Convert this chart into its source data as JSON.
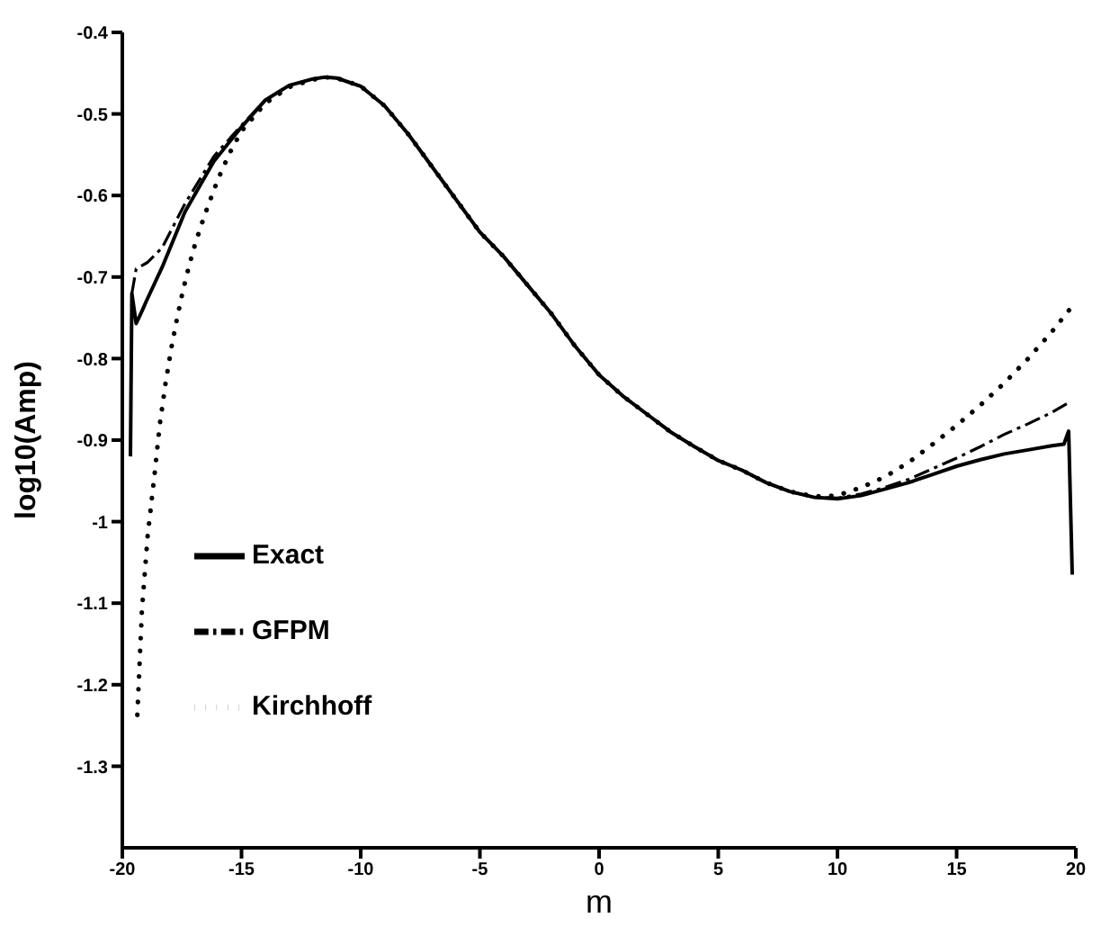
{
  "chart_data": {
    "type": "line",
    "xlabel": "m",
    "ylabel": "log10(Amp)",
    "xlim": [
      -20,
      20
    ],
    "ylim": [
      -1.4,
      -0.4
    ],
    "xticks": [
      -20,
      -15,
      -10,
      -5,
      0,
      5,
      10,
      15,
      20
    ],
    "yticks": [
      -1.3,
      -1.2,
      -1.1,
      -1,
      -0.9,
      -0.8,
      -0.7,
      -0.6,
      -0.5,
      -0.4
    ],
    "legend": "left",
    "series": [
      {
        "name": "Exact",
        "color": "#000000",
        "line_style": "solid",
        "x": [
          -19.66,
          -19.6,
          -19.42,
          -19.18,
          -19.0,
          -18.33,
          -17.37,
          -16.16,
          -15,
          -14,
          -13,
          -12,
          -11.5,
          -11,
          -10,
          -9,
          -8,
          -7,
          -6,
          -5,
          -4,
          -3,
          -2,
          -1,
          0,
          1,
          2,
          3,
          4,
          5,
          6,
          7,
          8,
          9,
          10,
          11,
          12,
          13,
          14,
          15,
          16,
          17,
          18,
          19,
          19.5,
          19.7,
          19.85
        ],
        "values": [
          -0.92,
          -0.72,
          -0.757,
          -0.742,
          -0.73,
          -0.688,
          -0.62,
          -0.558,
          -0.516,
          -0.483,
          -0.465,
          -0.457,
          -0.455,
          -0.456,
          -0.466,
          -0.49,
          -0.525,
          -0.565,
          -0.605,
          -0.645,
          -0.675,
          -0.71,
          -0.745,
          -0.785,
          -0.82,
          -0.846,
          -0.868,
          -0.89,
          -0.908,
          -0.925,
          -0.937,
          -0.952,
          -0.963,
          -0.97,
          -0.972,
          -0.968,
          -0.96,
          -0.952,
          -0.942,
          -0.932,
          -0.924,
          -0.917,
          -0.912,
          -0.907,
          -0.905,
          -0.889,
          -1.065
        ]
      },
      {
        "name": "GFPM",
        "color": "#000000",
        "line_style": "dashed",
        "x": [
          -19.6,
          -19.42,
          -18.94,
          -18.33,
          -17.37,
          -16.16,
          -15,
          -14,
          -13,
          -12,
          -11.5,
          -11,
          -10,
          -9,
          -8,
          -7,
          -6,
          -5,
          -4,
          -3,
          -2,
          -1,
          0,
          1,
          2,
          3,
          4,
          5,
          6,
          7,
          8,
          9,
          10,
          11,
          12,
          13,
          14,
          15,
          16,
          17,
          18,
          19,
          19.7
        ],
        "values": [
          -0.72,
          -0.69,
          -0.682,
          -0.664,
          -0.61,
          -0.552,
          -0.514,
          -0.483,
          -0.465,
          -0.457,
          -0.455,
          -0.456,
          -0.466,
          -0.49,
          -0.525,
          -0.565,
          -0.605,
          -0.645,
          -0.675,
          -0.71,
          -0.745,
          -0.785,
          -0.82,
          -0.846,
          -0.868,
          -0.89,
          -0.908,
          -0.925,
          -0.937,
          -0.952,
          -0.963,
          -0.97,
          -0.971,
          -0.966,
          -0.958,
          -0.948,
          -0.935,
          -0.922,
          -0.908,
          -0.893,
          -0.88,
          -0.866,
          -0.854
        ]
      },
      {
        "name": "Kirchhoff",
        "color": "#000000",
        "line_style": "dotted",
        "x": [
          -19.37,
          -19.18,
          -18.94,
          -18.65,
          -18.43,
          -18.19,
          -17.95,
          -17.7,
          -17.46,
          -17.2,
          -16.96,
          -16.72,
          -16.47,
          -16,
          -15.5,
          -15,
          -14,
          -13,
          -12,
          -11.5,
          -11,
          -10,
          -9,
          -8,
          -7,
          -6,
          -5,
          -4,
          -3,
          -2,
          -1,
          0,
          1,
          2,
          3,
          4,
          5,
          6,
          7,
          8,
          9,
          10,
          11,
          12,
          13,
          14,
          15,
          16,
          17,
          18,
          19,
          19.9
        ],
        "values": [
          -1.237,
          -1.11,
          -1.018,
          -0.943,
          -0.881,
          -0.831,
          -0.788,
          -0.75,
          -0.717,
          -0.686,
          -0.661,
          -0.639,
          -0.618,
          -0.581,
          -0.548,
          -0.521,
          -0.487,
          -0.467,
          -0.458,
          -0.455,
          -0.456,
          -0.466,
          -0.49,
          -0.525,
          -0.565,
          -0.605,
          -0.645,
          -0.675,
          -0.71,
          -0.745,
          -0.785,
          -0.82,
          -0.846,
          -0.868,
          -0.89,
          -0.908,
          -0.925,
          -0.937,
          -0.952,
          -0.963,
          -0.969,
          -0.968,
          -0.958,
          -0.945,
          -0.927,
          -0.905,
          -0.882,
          -0.857,
          -0.83,
          -0.8,
          -0.767,
          -0.734
        ]
      }
    ]
  }
}
